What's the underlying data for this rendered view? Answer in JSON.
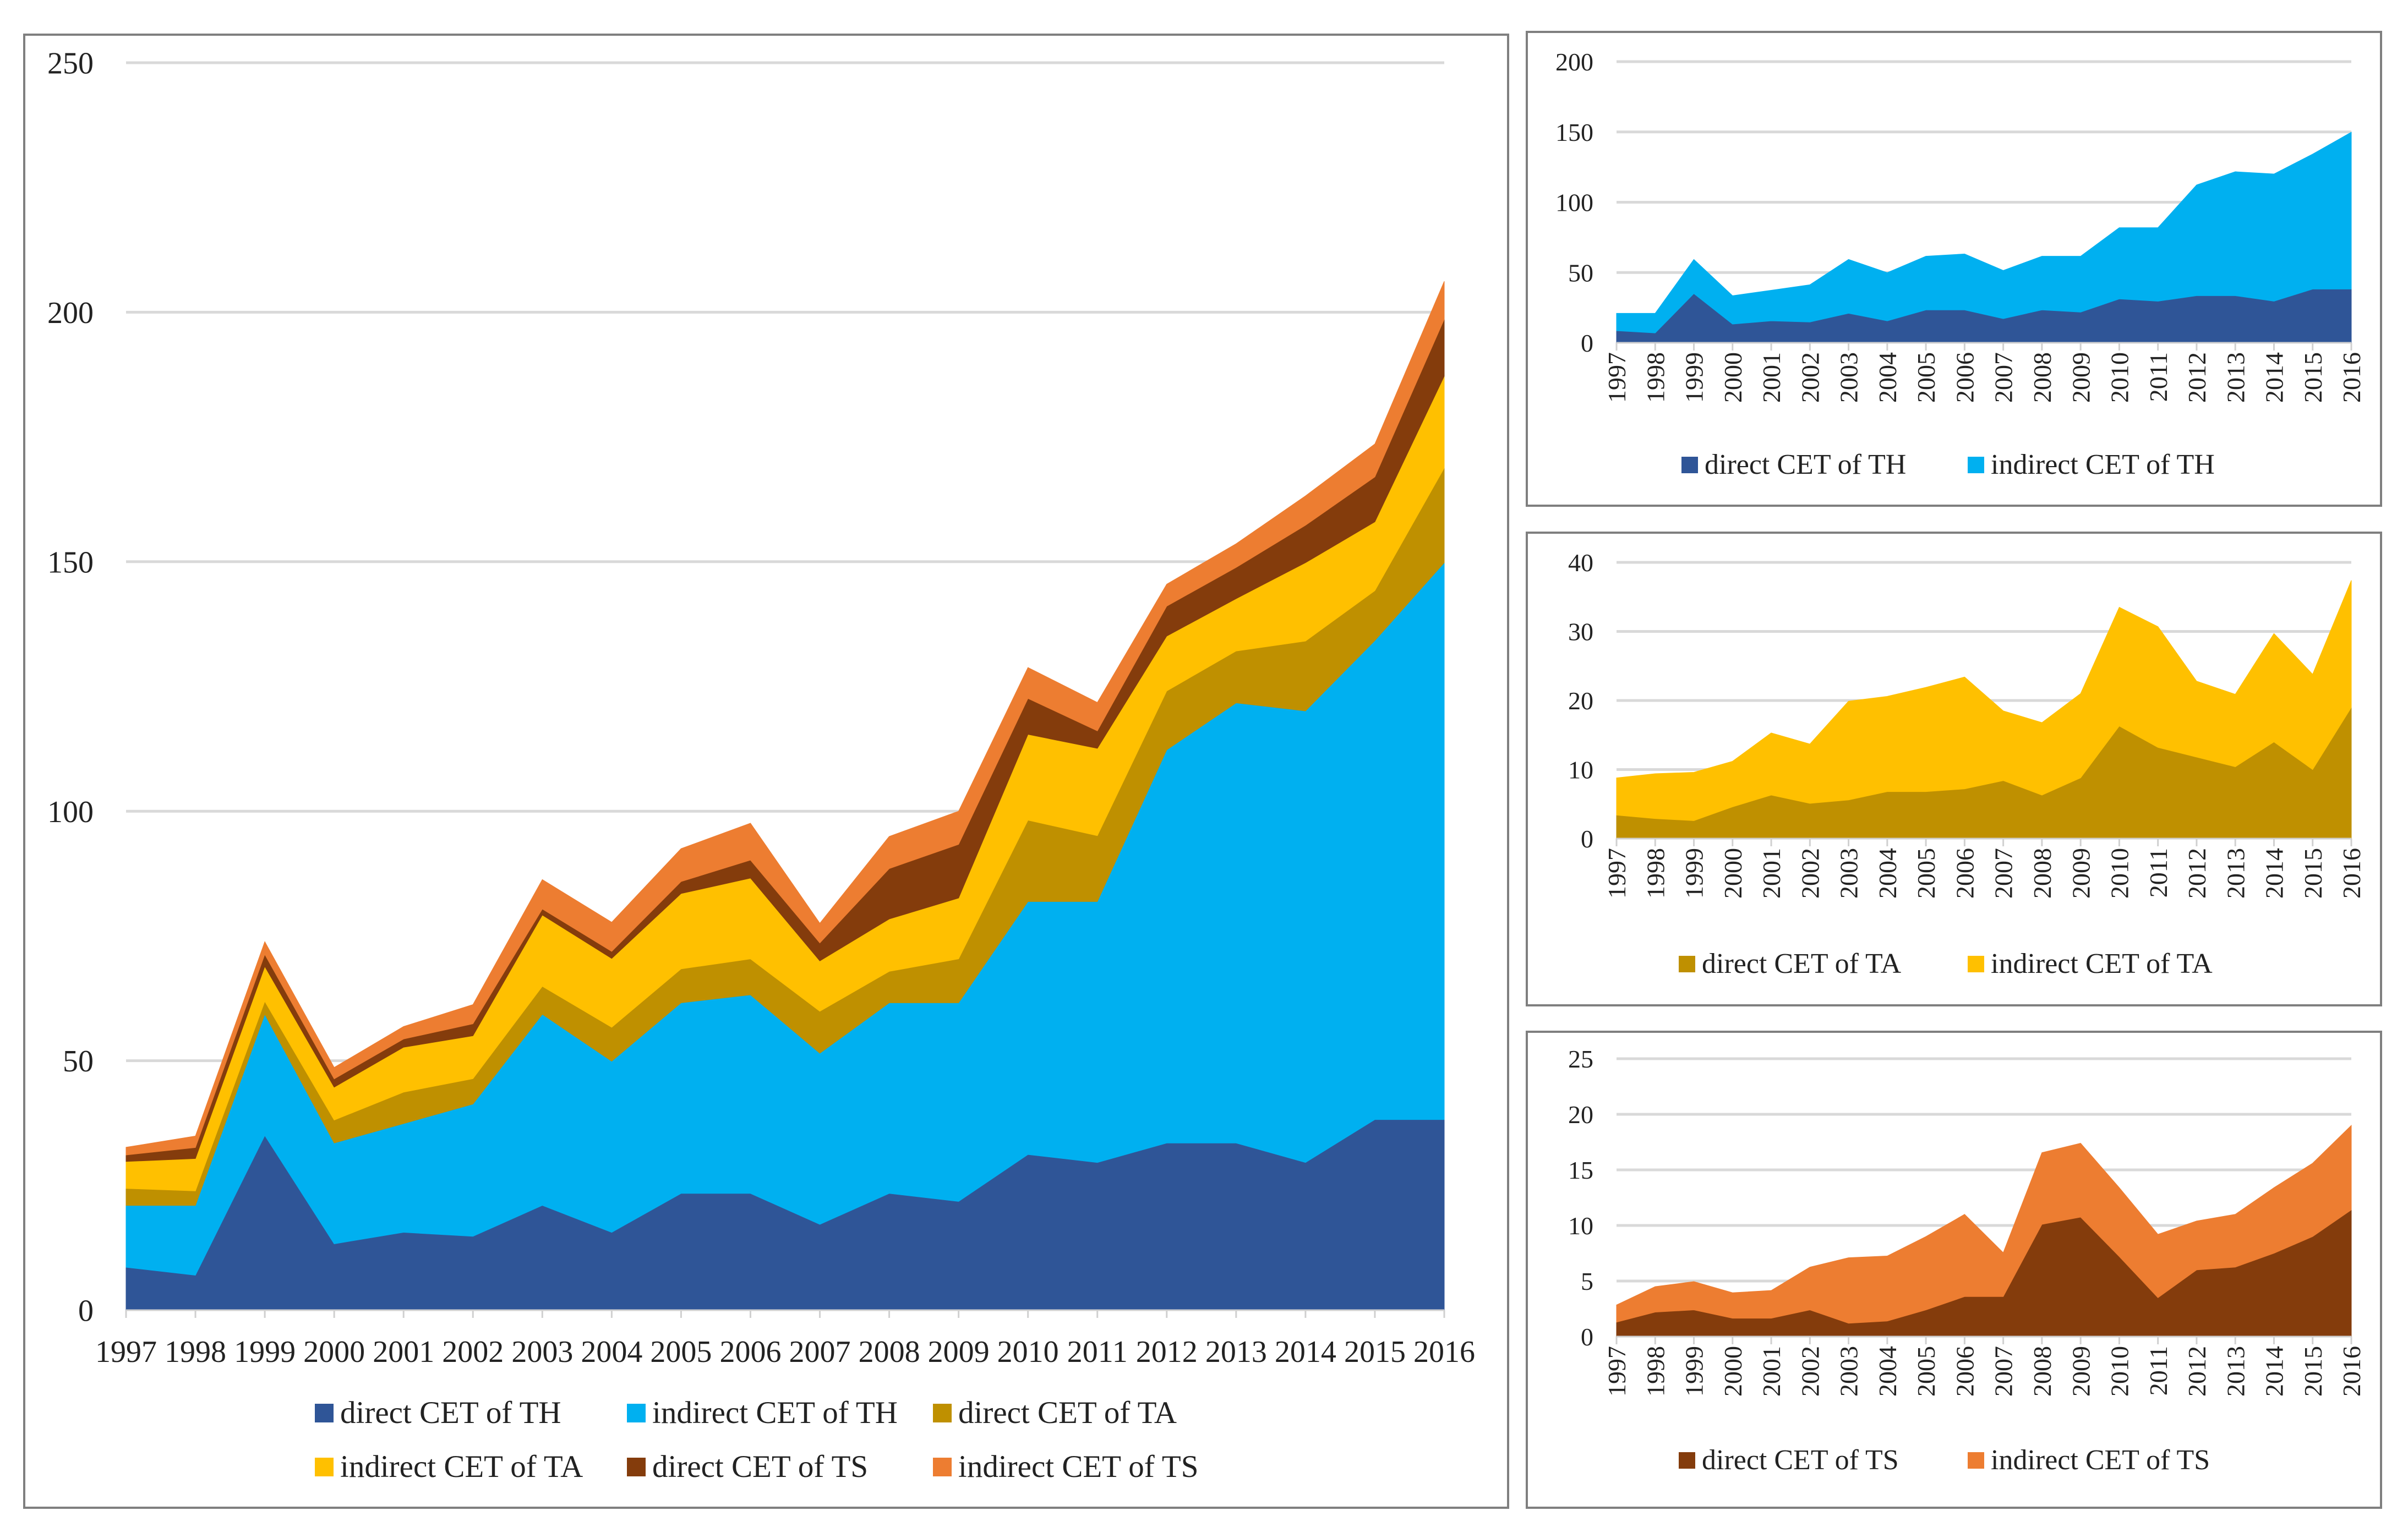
{
  "chart_data": [
    {
      "type": "area",
      "stacked": true,
      "title": "",
      "xlabel": "",
      "ylabel": "",
      "ylim": [
        0,
        250
      ],
      "ytick_step": 50,
      "grid": true,
      "legend_position": "bottom",
      "x": [
        "1997",
        "1998",
        "1999",
        "2000",
        "2001",
        "2002",
        "2003",
        "2004",
        "2005",
        "2006",
        "2007",
        "2008",
        "2009",
        "2010",
        "2011",
        "2012",
        "2013",
        "2014",
        "2015",
        "2016"
      ],
      "series": [
        {
          "name": "direct CET of TH",
          "color": "#2F5597",
          "values": [
            8.6,
            7,
            35,
            13.3,
            15.6,
            14.8,
            21,
            15.6,
            23.4,
            23.4,
            17.2,
            23.4,
            21.8,
            31.2,
            29.6,
            33.5,
            33.5,
            29.6,
            38.2,
            38.2
          ]
        },
        {
          "name": "indirect CET of TH",
          "color": "#00B0F0",
          "values": [
            12.4,
            14,
            24.3,
            20.2,
            21.8,
            26.5,
            38.3,
            34.3,
            38.2,
            39.8,
            34.3,
            38.2,
            39.8,
            50.7,
            52.3,
            78.8,
            88.2,
            90.5,
            96,
            111.6
          ]
        },
        {
          "name": "direct CET of TA",
          "color": "#BF9000",
          "values": [
            3.4,
            2.9,
            2.6,
            4.6,
            6.3,
            5.1,
            5.6,
            6.8,
            6.8,
            7.2,
            8.4,
            6.3,
            8.8,
            16.3,
            13.2,
            11.8,
            10.4,
            14,
            10,
            19
          ]
        },
        {
          "name": "indirect CET of TA",
          "color": "#FFC000",
          "values": [
            5.4,
            6.5,
            7,
            6.6,
            9,
            8.6,
            14.3,
            13.8,
            15.1,
            16.2,
            10.1,
            10.5,
            12.2,
            17.2,
            17.5,
            11,
            10.5,
            15.7,
            13.8,
            18.4
          ]
        },
        {
          "name": "direct CET of TS",
          "color": "#843C0C",
          "values": [
            1.3,
            2.2,
            2.4,
            1.65,
            1.65,
            2.4,
            1.2,
            1.4,
            2.4,
            3.6,
            3.6,
            10.1,
            10.75,
            7.2,
            3.5,
            6,
            6.25,
            7.5,
            9,
            11.4
          ]
        },
        {
          "name": "indirect CET of TS",
          "color": "#ED7D31",
          "values": [
            1.55,
            2.3,
            2.55,
            2.3,
            2.5,
            3.85,
            5.9,
            5.85,
            6.6,
            7.4,
            3.95,
            6.45,
            6.65,
            6.2,
            5.7,
            4.4,
            4.75,
            5.9,
            6.6,
            7.6
          ]
        }
      ]
    },
    {
      "type": "area",
      "stacked": true,
      "title": "",
      "xlabel": "",
      "ylabel": "",
      "ylim": [
        0,
        200
      ],
      "ytick_step": 50,
      "grid": true,
      "legend_position": "bottom",
      "x": [
        "1997",
        "1998",
        "1999",
        "2000",
        "2001",
        "2002",
        "2003",
        "2004",
        "2005",
        "2006",
        "2007",
        "2008",
        "2009",
        "2010",
        "2011",
        "2012",
        "2013",
        "2014",
        "2015",
        "2016"
      ],
      "series": [
        {
          "name": "direct CET of TH",
          "color": "#2F5597",
          "values": [
            8.6,
            7,
            35,
            13.3,
            15.6,
            14.8,
            21,
            15.6,
            23.4,
            23.4,
            17.2,
            23.4,
            21.8,
            31.2,
            29.6,
            33.5,
            33.5,
            29.6,
            38.2,
            38.2
          ]
        },
        {
          "name": "indirect CET of TH",
          "color": "#00B0F0",
          "values": [
            12.4,
            14,
            24.3,
            20.2,
            21.8,
            26.5,
            38.3,
            34.3,
            38.2,
            39.8,
            34.3,
            38.2,
            39.8,
            50.7,
            52.3,
            78.8,
            88.2,
            90.5,
            96,
            111.6
          ]
        }
      ]
    },
    {
      "type": "area",
      "stacked": true,
      "title": "",
      "xlabel": "",
      "ylabel": "",
      "ylim": [
        0,
        40
      ],
      "ytick_step": 10,
      "grid": true,
      "legend_position": "bottom",
      "x": [
        "1997",
        "1998",
        "1999",
        "2000",
        "2001",
        "2002",
        "2003",
        "2004",
        "2005",
        "2006",
        "2007",
        "2008",
        "2009",
        "2010",
        "2011",
        "2012",
        "2013",
        "2014",
        "2015",
        "2016"
      ],
      "series": [
        {
          "name": "direct CET of TA",
          "color": "#BF9000",
          "values": [
            3.4,
            2.9,
            2.6,
            4.6,
            6.3,
            5.1,
            5.6,
            6.8,
            6.8,
            7.2,
            8.4,
            6.3,
            8.8,
            16.3,
            13.2,
            11.8,
            10.4,
            14,
            10,
            19
          ]
        },
        {
          "name": "indirect CET of TA",
          "color": "#FFC000",
          "values": [
            5.4,
            6.5,
            7,
            6.6,
            9,
            8.6,
            14.3,
            13.8,
            15.1,
            16.2,
            10.1,
            10.5,
            12.2,
            17.2,
            17.5,
            11,
            10.5,
            15.7,
            13.8,
            18.4
          ]
        }
      ]
    },
    {
      "type": "area",
      "stacked": true,
      "title": "",
      "xlabel": "",
      "ylabel": "",
      "ylim": [
        0,
        25
      ],
      "ytick_step": 5,
      "grid": true,
      "legend_position": "bottom",
      "x": [
        "1997",
        "1998",
        "1999",
        "2000",
        "2001",
        "2002",
        "2003",
        "2004",
        "2005",
        "2006",
        "2007",
        "2008",
        "2009",
        "2010",
        "2011",
        "2012",
        "2013",
        "2014",
        "2015",
        "2016"
      ],
      "series": [
        {
          "name": "direct CET of TS",
          "color": "#843C0C",
          "values": [
            1.3,
            2.2,
            2.4,
            1.65,
            1.65,
            2.4,
            1.2,
            1.4,
            2.4,
            3.6,
            3.6,
            10.1,
            10.75,
            7.2,
            3.5,
            6,
            6.25,
            7.5,
            9,
            11.4
          ]
        },
        {
          "name": "indirect CET of TS",
          "color": "#ED7D31",
          "values": [
            1.55,
            2.3,
            2.55,
            2.3,
            2.5,
            3.85,
            5.9,
            5.85,
            6.6,
            7.4,
            3.95,
            6.45,
            6.65,
            6.2,
            5.7,
            4.4,
            4.75,
            5.9,
            6.6,
            7.6
          ]
        }
      ]
    }
  ]
}
